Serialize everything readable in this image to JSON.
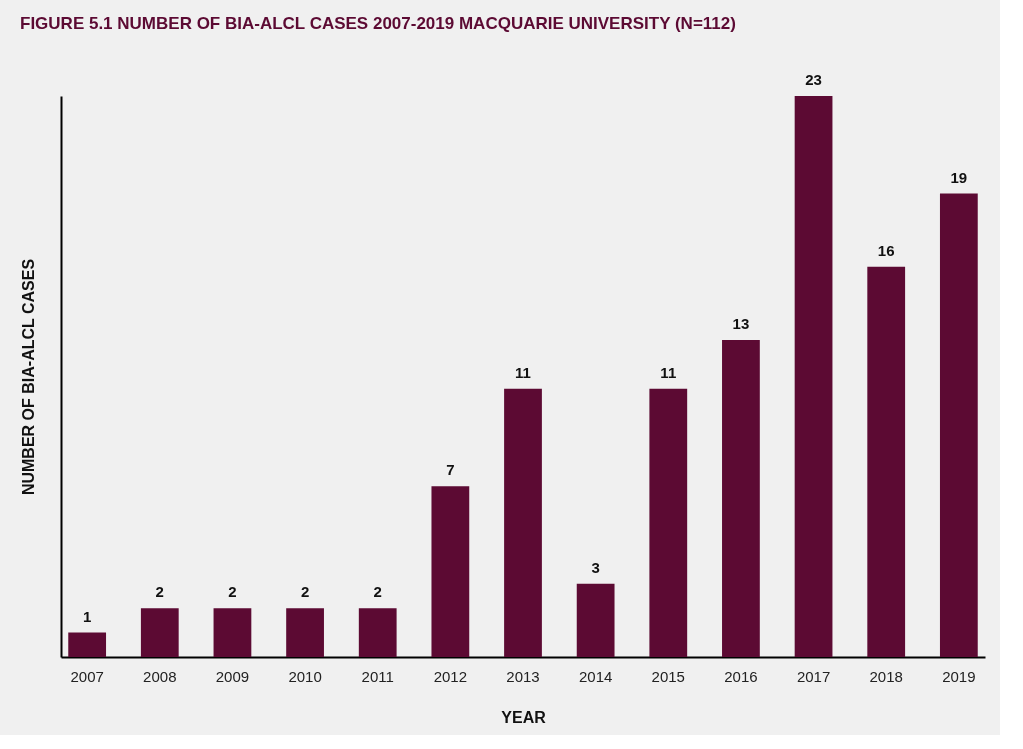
{
  "chart_data": {
    "type": "bar",
    "title": "FIGURE 5.1    NUMBER OF BIA-ALCL CASES 2007-2019 MACQUARIE UNIVERSITY (N=112)",
    "xlabel": "YEAR",
    "ylabel": "NUMBER OF BIA-ALCL CASES",
    "categories": [
      "2007",
      "2008",
      "2009",
      "2010",
      "2011",
      "2012",
      "2013",
      "2014",
      "2015",
      "2016",
      "2017",
      "2018",
      "2019"
    ],
    "values": [
      1,
      2,
      2,
      2,
      2,
      7,
      11,
      3,
      11,
      13,
      23,
      16,
      19
    ],
    "color": "#5c0a33",
    "ylim": [
      0,
      23
    ],
    "data_labels": true,
    "grid": false,
    "tick_labels": "x"
  }
}
